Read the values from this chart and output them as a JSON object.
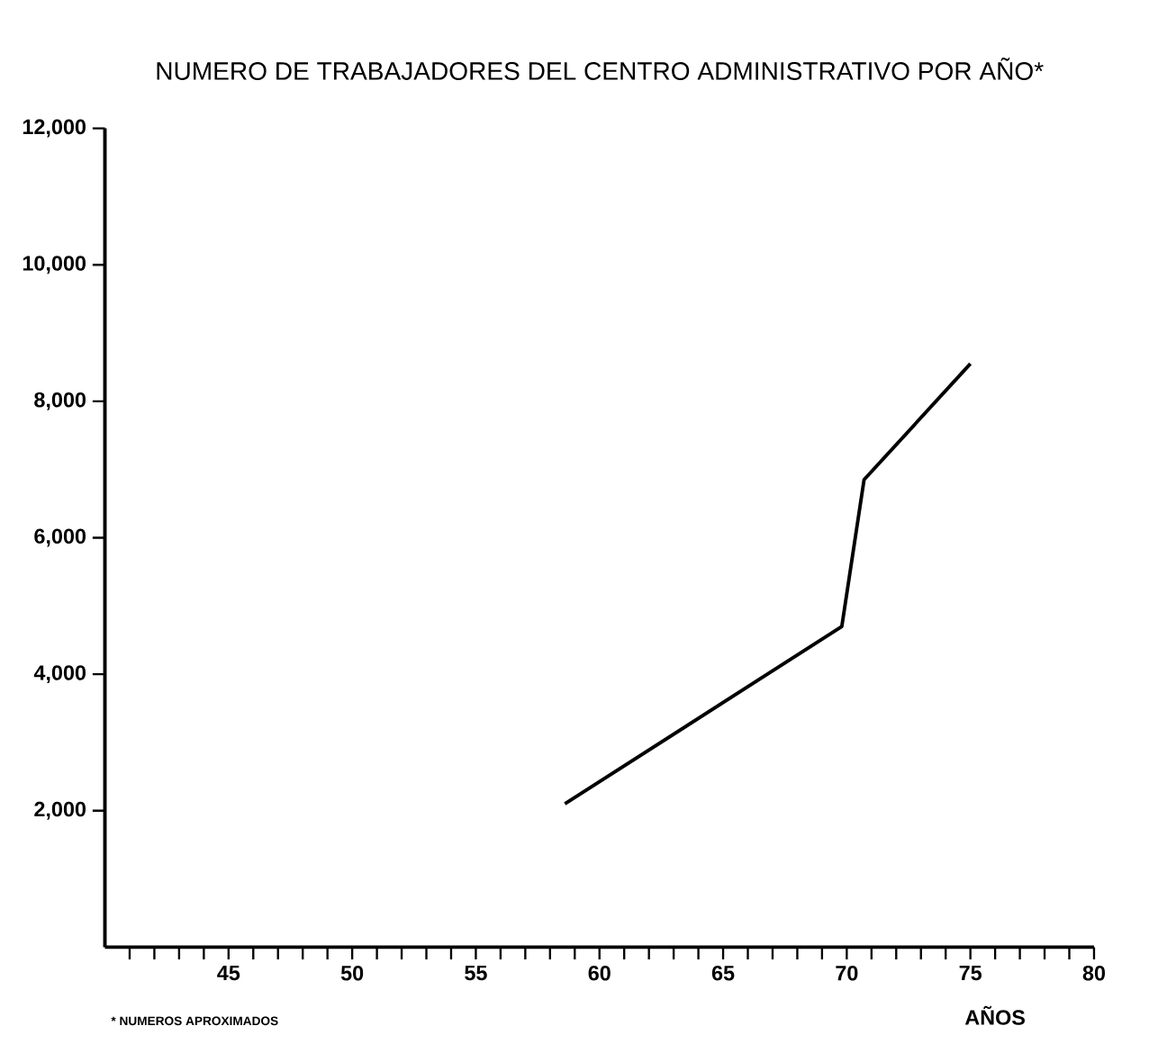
{
  "chart_data": {
    "type": "line",
    "title": "NUMERO DE TRABAJADORES DEL CENTRO ADMINISTRATIVO POR AÑO*",
    "xlabel": "AÑOS",
    "annotations": [
      "* NUMEROS APROXIMADOS"
    ],
    "x": [
      58.6,
      69.8,
      70.7,
      75
    ],
    "series": [
      {
        "color": "#000000",
        "values": [
          2100,
          4700,
          6850,
          8550
        ]
      }
    ],
    "xlim": [
      40,
      80
    ],
    "ylim": [
      0,
      12000
    ],
    "xticks": [
      {
        "value": 41,
        "label": null
      },
      {
        "value": 42,
        "label": null
      },
      {
        "value": 43,
        "label": null
      },
      {
        "value": 44,
        "label": null
      },
      45,
      {
        "value": 46,
        "label": null
      },
      {
        "value": 47,
        "label": null
      },
      {
        "value": 48,
        "label": null
      },
      {
        "value": 49,
        "label": null
      },
      50,
      {
        "value": 51,
        "label": null
      },
      {
        "value": 52,
        "label": null
      },
      {
        "value": 53,
        "label": null
      },
      {
        "value": 54,
        "label": null
      },
      55,
      {
        "value": 56,
        "label": null
      },
      {
        "value": 57,
        "label": null
      },
      {
        "value": 58,
        "label": null
      },
      {
        "value": 59,
        "label": null
      },
      60,
      {
        "value": 61,
        "label": null
      },
      {
        "value": 62,
        "label": null
      },
      {
        "value": 63,
        "label": null
      },
      {
        "value": 64,
        "label": null
      },
      65,
      {
        "value": 66,
        "label": null
      },
      {
        "value": 67,
        "label": null
      },
      {
        "value": 68,
        "label": null
      },
      {
        "value": 69,
        "label": null
      },
      70,
      {
        "value": 71,
        "label": null
      },
      {
        "value": 72,
        "label": null
      },
      {
        "value": 73,
        "label": null
      },
      {
        "value": 74,
        "label": null
      },
      75,
      {
        "value": 76,
        "label": null
      },
      {
        "value": 77,
        "label": null
      },
      {
        "value": 78,
        "label": null
      },
      {
        "value": 79,
        "label": null
      },
      80
    ],
    "yticks": [
      {
        "value": 2000,
        "label": "2,000"
      },
      {
        "value": 4000,
        "label": "4,000"
      },
      {
        "value": 6000,
        "label": "6,000"
      },
      {
        "value": 8000,
        "label": "8,000"
      },
      {
        "value": 10000,
        "label": "10,000"
      },
      {
        "value": 12000,
        "label": "12,000"
      }
    ],
    "grid": false,
    "marker": "none",
    "line_style": "solid"
  }
}
